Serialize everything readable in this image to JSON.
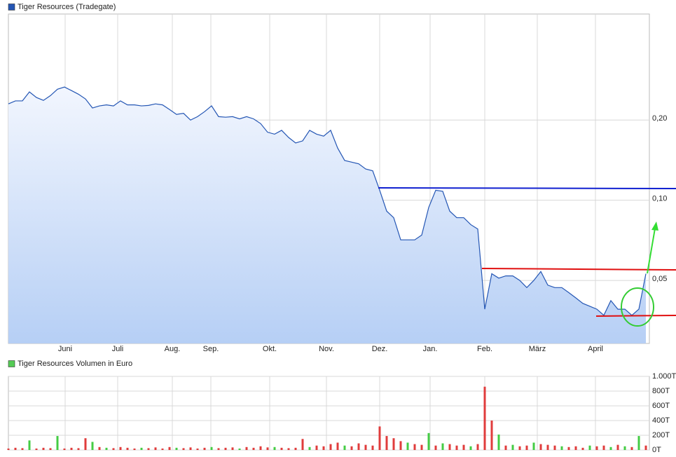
{
  "chart_data": [
    {
      "type": "area",
      "series": [
        {
          "name": "Tiger Resources (Tradegate)",
          "color": "#2456b4",
          "values": [
            0.23,
            0.236,
            0.236,
            0.255,
            0.243,
            0.237,
            0.247,
            0.261,
            0.266,
            0.258,
            0.25,
            0.24,
            0.222,
            0.226,
            0.228,
            0.226,
            0.236,
            0.228,
            0.228,
            0.226,
            0.227,
            0.23,
            0.228,
            0.219,
            0.21,
            0.212,
            0.2,
            0.206,
            0.215,
            0.226,
            0.206,
            0.205,
            0.206,
            0.202,
            0.206,
            0.202,
            0.194,
            0.18,
            0.177,
            0.183,
            0.172,
            0.164,
            0.167,
            0.183,
            0.177,
            0.174,
            0.183,
            0.157,
            0.141,
            0.139,
            0.137,
            0.131,
            0.129,
            0.109,
            0.091,
            0.086,
            0.071,
            0.071,
            0.071,
            0.074,
            0.094,
            0.109,
            0.108,
            0.091,
            0.086,
            0.086,
            0.081,
            0.078,
            0.039,
            0.053,
            0.051,
            0.052,
            0.052,
            0.05,
            0.047,
            0.05,
            0.054,
            0.048,
            0.047,
            0.047,
            0.045,
            0.043,
            0.041,
            0.04,
            0.039,
            0.037,
            0.042,
            0.039,
            0.039,
            0.037,
            0.039,
            0.053
          ]
        }
      ],
      "xlim": [
        0,
        91.5
      ],
      "xticks": [
        {
          "value": 8.1,
          "label": "Juni"
        },
        {
          "value": 15.6,
          "label": "Juli"
        },
        {
          "value": 23.4,
          "label": "Aug."
        },
        {
          "value": 28.9,
          "label": "Sep."
        },
        {
          "value": 37.3,
          "label": "Okt."
        },
        {
          "value": 45.4,
          "label": "Nov."
        },
        {
          "value": 53,
          "label": "Dez."
        },
        {
          "value": 60.2,
          "label": "Jan."
        },
        {
          "value": 68,
          "label": "Feb."
        },
        {
          "value": 75.5,
          "label": "März"
        },
        {
          "value": 83.8,
          "label": "April"
        }
      ],
      "ylim": [
        0.029,
        0.5
      ],
      "yticks": [
        {
          "value": 0.05,
          "label": "0,05"
        },
        {
          "value": 0.1,
          "label": "0,10"
        },
        {
          "value": 0.2,
          "label": "0,20"
        }
      ],
      "log_scale": true,
      "grid": true
    },
    {
      "type": "bar",
      "series": [
        {
          "name": "Tiger Resources Volumen in Euro",
          "color": "#55cc55",
          "values": [
            20,
            30,
            25,
            130,
            20,
            30,
            25,
            190,
            20,
            30,
            25,
            160,
            110,
            40,
            30,
            25,
            40,
            30,
            20,
            30,
            25,
            35,
            20,
            40,
            30,
            25,
            35,
            20,
            30,
            40,
            25,
            30,
            35,
            20,
            40,
            30,
            50,
            35,
            40,
            30,
            25,
            30,
            150,
            40,
            60,
            50,
            80,
            100,
            60,
            50,
            90,
            70,
            60,
            320,
            190,
            160,
            120,
            100,
            80,
            70,
            230,
            60,
            90,
            80,
            60,
            70,
            50,
            80,
            860,
            400,
            210,
            60,
            70,
            50,
            60,
            100,
            80,
            70,
            60,
            50,
            40,
            50,
            30,
            60,
            50,
            60,
            40,
            70,
            50,
            40,
            190,
            60
          ],
          "colors": [
            "#e03c3c",
            "#e03c3c",
            "#e03c3c",
            "#44cc44",
            "#e03c3c",
            "#e03c3c",
            "#e03c3c",
            "#44cc44",
            "#e03c3c",
            "#e03c3c",
            "#e03c3c",
            "#e03c3c",
            "#44cc44",
            "#e03c3c",
            "#44cc44",
            "#e03c3c",
            "#e03c3c",
            "#e03c3c",
            "#e03c3c",
            "#44cc44",
            "#e03c3c",
            "#e03c3c",
            "#e03c3c",
            "#e03c3c",
            "#44cc44",
            "#e03c3c",
            "#e03c3c",
            "#e03c3c",
            "#e03c3c",
            "#44cc44",
            "#e03c3c",
            "#e03c3c",
            "#e03c3c",
            "#44cc44",
            "#e03c3c",
            "#e03c3c",
            "#e03c3c",
            "#e03c3c",
            "#44cc44",
            "#e03c3c",
            "#e03c3c",
            "#e03c3c",
            "#e03c3c",
            "#44cc44",
            "#e03c3c",
            "#e03c3c",
            "#e03c3c",
            "#e03c3c",
            "#44cc44",
            "#e03c3c",
            "#e03c3c",
            "#e03c3c",
            "#e03c3c",
            "#e03c3c",
            "#e03c3c",
            "#e03c3c",
            "#e03c3c",
            "#44cc44",
            "#e03c3c",
            "#e03c3c",
            "#44cc44",
            "#e03c3c",
            "#44cc44",
            "#e03c3c",
            "#e03c3c",
            "#e03c3c",
            "#44cc44",
            "#e03c3c",
            "#e03c3c",
            "#e03c3c",
            "#44cc44",
            "#e03c3c",
            "#44cc44",
            "#e03c3c",
            "#e03c3c",
            "#44cc44",
            "#e03c3c",
            "#e03c3c",
            "#e03c3c",
            "#44cc44",
            "#e03c3c",
            "#e03c3c",
            "#e03c3c",
            "#44cc44",
            "#e03c3c",
            "#e03c3c",
            "#44cc44",
            "#e03c3c",
            "#44cc44",
            "#e03c3c",
            "#44cc44",
            "#e03c3c"
          ]
        }
      ],
      "xlim": [
        0,
        91.5
      ],
      "xticks": [
        8.1,
        15.6,
        23.4,
        28.9,
        37.3,
        45.4,
        53,
        60.2,
        68,
        75.5,
        83.8
      ],
      "ylim": [
        0,
        1000
      ],
      "yticks": [
        {
          "value": 0,
          "label": "0T"
        },
        {
          "value": 200,
          "label": "200T"
        },
        {
          "value": 400,
          "label": "400T"
        },
        {
          "value": 600,
          "label": "600T"
        },
        {
          "value": 800,
          "label": "800T"
        },
        {
          "value": 1000,
          "label": "1.000T"
        }
      ],
      "grid": true
    }
  ]
}
